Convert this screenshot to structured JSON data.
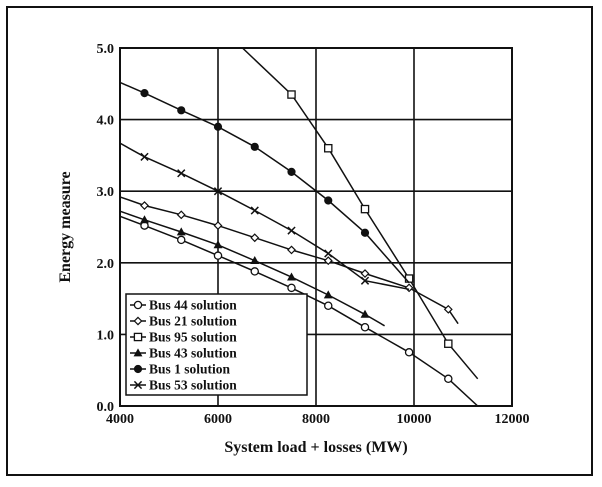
{
  "chart_data": {
    "type": "line",
    "title": "",
    "xlabel": "System load + losses (MW)",
    "ylabel": "Energy measure",
    "xlim": [
      4000,
      12000
    ],
    "ylim": [
      0,
      5
    ],
    "x_ticks": [
      "4000",
      "6000",
      "8000",
      "10000",
      "12000"
    ],
    "y_ticks": [
      "0.0",
      "1.0",
      "2.0",
      "3.0",
      "4.0",
      "5.0"
    ],
    "grid": true,
    "legend_position": "bottom-left",
    "series": [
      {
        "name": "Bus 44 solution",
        "marker": "open-circle",
        "x": [
          4000,
          4500,
          5250,
          6000,
          6750,
          7500,
          8250,
          9000,
          9900,
          10700,
          11300
        ],
        "y": [
          2.65,
          2.52,
          2.32,
          2.1,
          1.88,
          1.65,
          1.4,
          1.1,
          0.75,
          0.38,
          0.0
        ]
      },
      {
        "name": "Bus 21 solution",
        "marker": "diamond",
        "x": [
          4000,
          4500,
          5250,
          6000,
          6750,
          7500,
          8250,
          9000,
          9900,
          10700,
          10900
        ],
        "y": [
          2.92,
          2.8,
          2.67,
          2.52,
          2.35,
          2.18,
          2.03,
          1.85,
          1.65,
          1.35,
          1.15
        ]
      },
      {
        "name": "Bus 95 solution",
        "marker": "open-square",
        "x": [
          6500,
          7500,
          8250,
          9000,
          9900,
          10700,
          11300
        ],
        "y": [
          5.0,
          4.35,
          3.6,
          2.75,
          1.78,
          0.87,
          0.38
        ]
      },
      {
        "name": "Bus 43 solution",
        "marker": "triangle",
        "x": [
          4000,
          4500,
          5250,
          6000,
          6750,
          7500,
          8250,
          9000,
          9400
        ],
        "y": [
          2.72,
          2.6,
          2.43,
          2.25,
          2.03,
          1.8,
          1.55,
          1.28,
          1.12
        ]
      },
      {
        "name": "Bus 1 solution",
        "marker": "filled-circle",
        "x": [
          4000,
          4500,
          5250,
          6000,
          6750,
          7500,
          8250,
          9000,
          9900
        ],
        "y": [
          4.52,
          4.37,
          4.13,
          3.9,
          3.62,
          3.27,
          2.87,
          2.42,
          1.72
        ]
      },
      {
        "name": "Bus 53 solution",
        "marker": "x",
        "x": [
          4000,
          4500,
          5250,
          6000,
          6750,
          7500,
          8250,
          9000,
          9900
        ],
        "y": [
          3.67,
          3.48,
          3.25,
          3.0,
          2.73,
          2.45,
          2.13,
          1.75,
          1.63
        ]
      }
    ]
  }
}
